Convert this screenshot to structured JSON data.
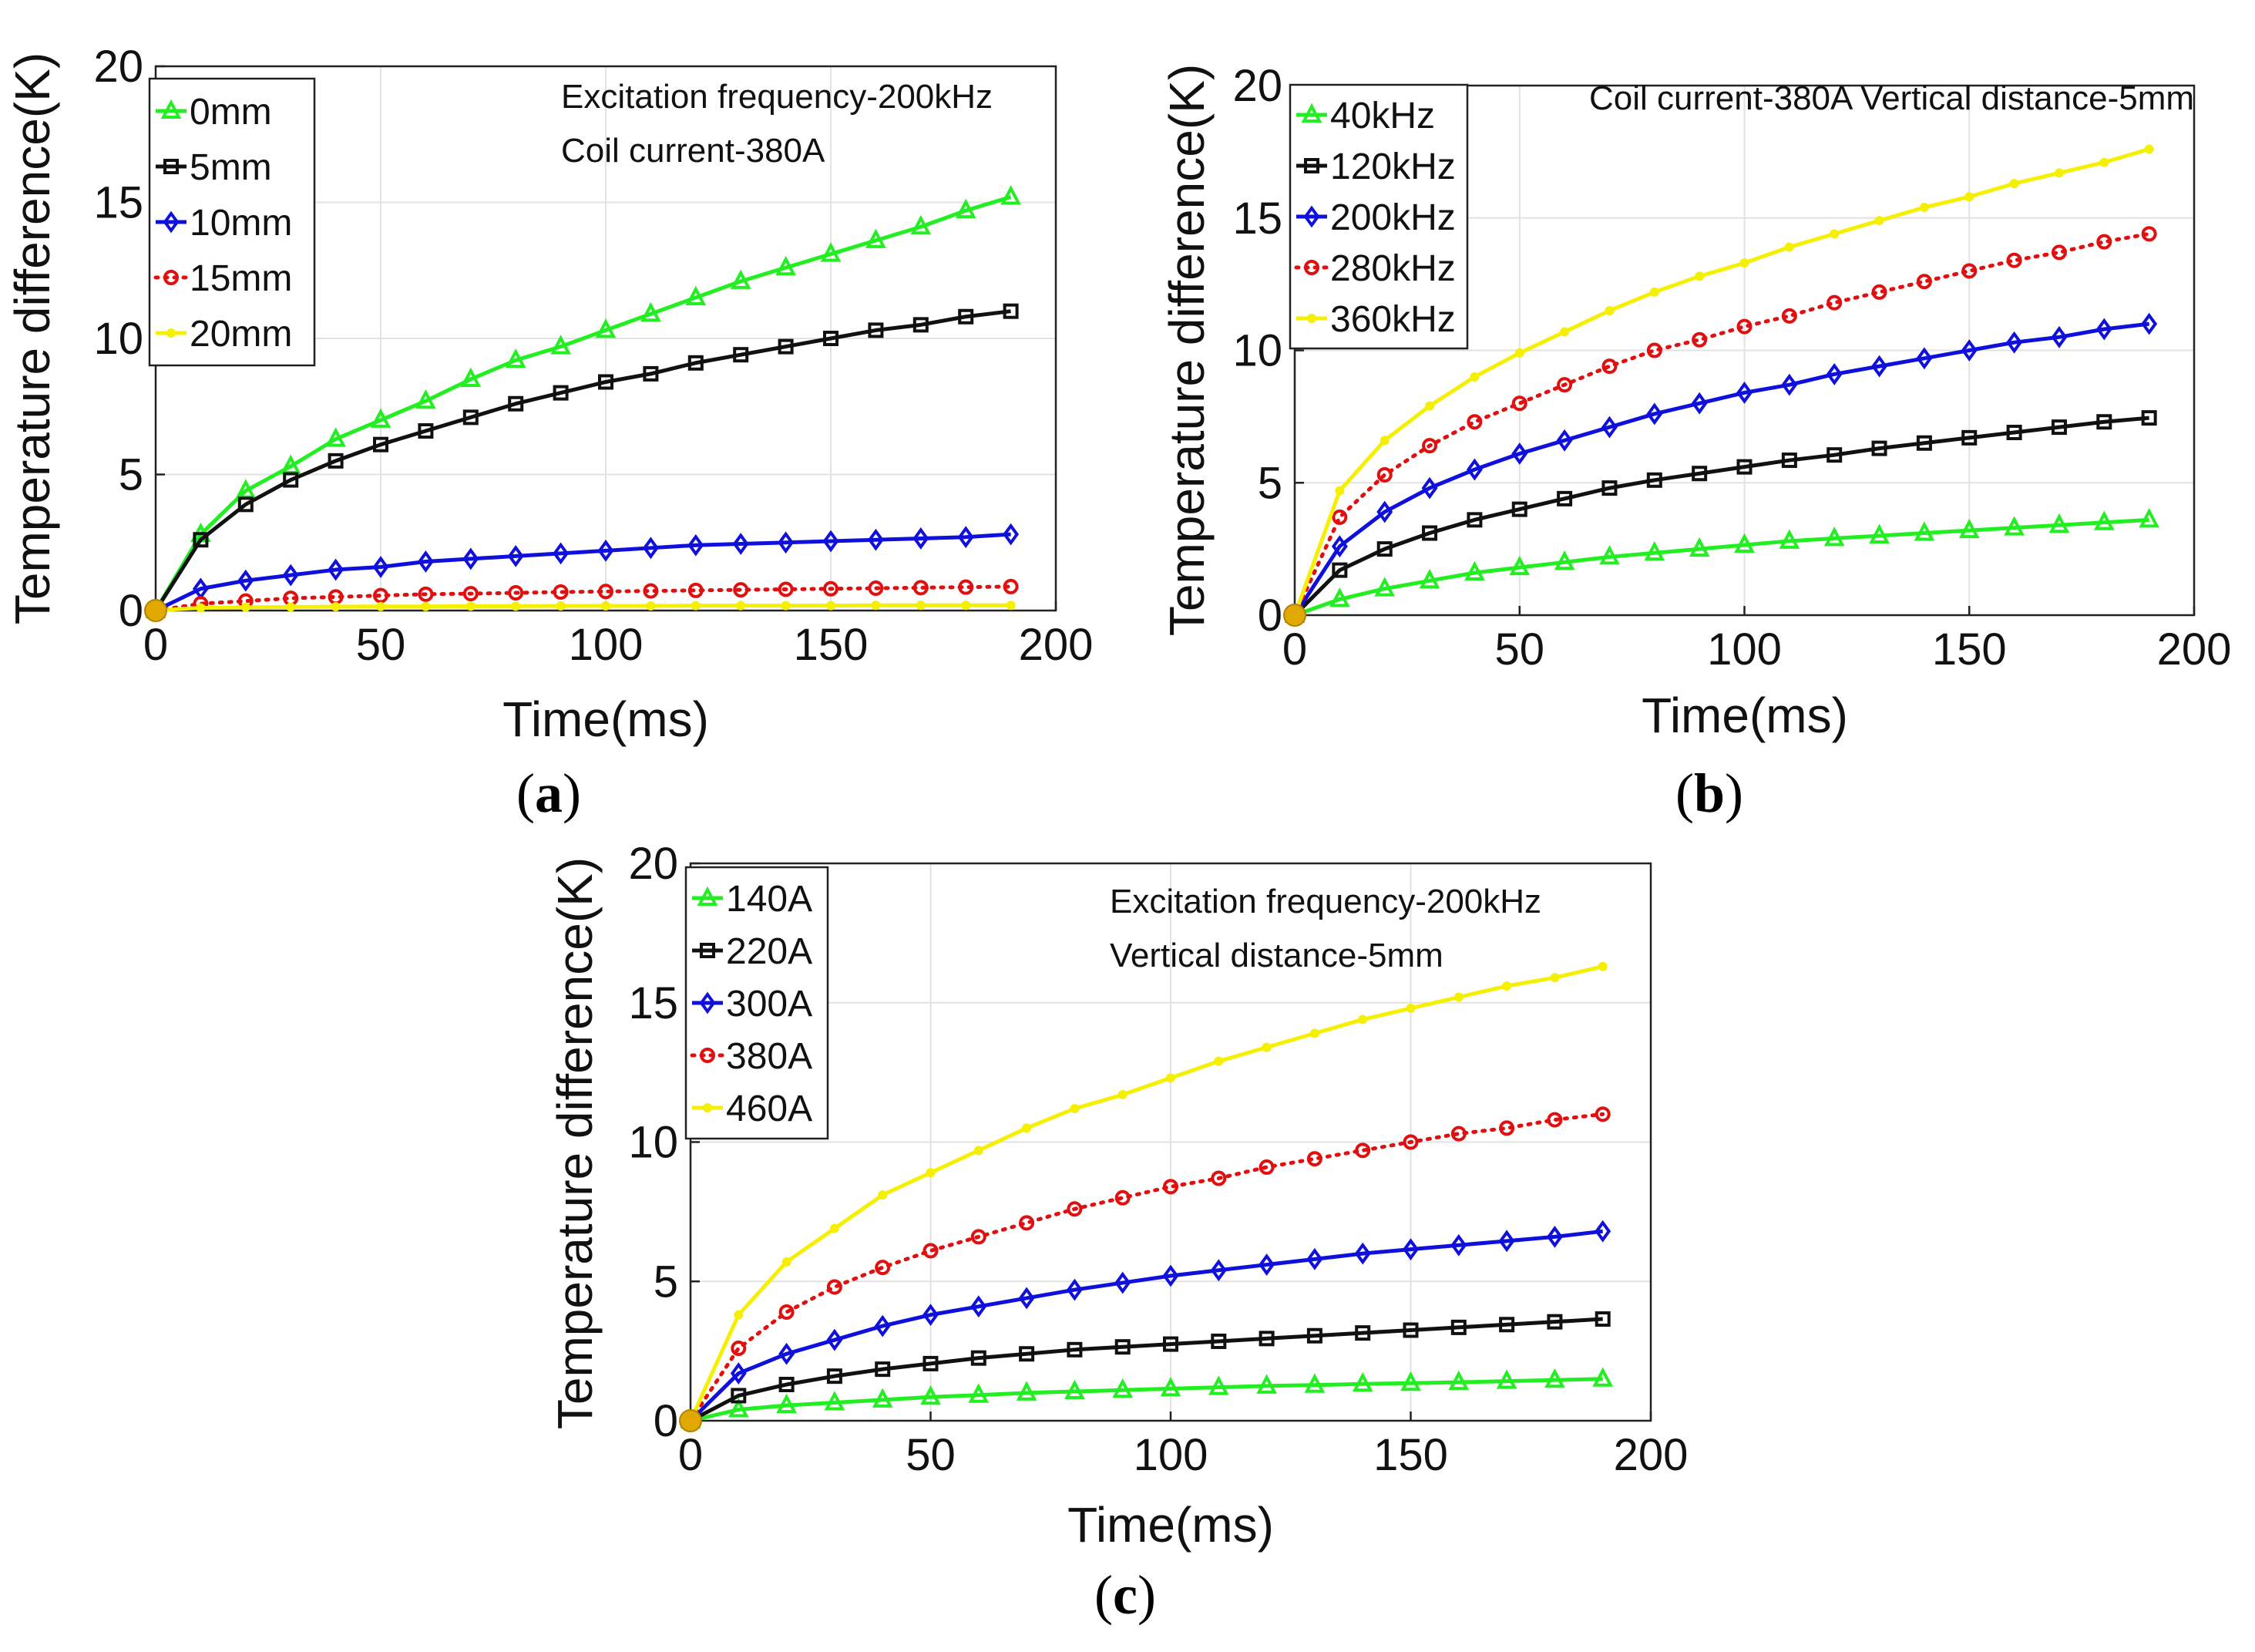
{
  "chart_data": [
    {
      "type": "line",
      "panel": "a",
      "caption": "(a)",
      "xlabel": "Time(ms)",
      "ylabel": "Temperature difference(K)",
      "xlim": [
        0,
        200
      ],
      "ylim": [
        0,
        20
      ],
      "xticks": [
        0,
        50,
        100,
        150,
        200
      ],
      "yticks": [
        0,
        5,
        10,
        15,
        20
      ],
      "grid": true,
      "legend_position": "top-left",
      "annotations": [
        "Excitation frequency-200kHz",
        "Coil current-380A"
      ],
      "x": [
        0,
        10,
        20,
        30,
        40,
        50,
        60,
        70,
        80,
        90,
        100,
        110,
        120,
        130,
        140,
        150,
        160,
        170,
        180,
        190
      ],
      "series": [
        {
          "name": "0mm",
          "color": "#22ee22",
          "marker": "triangle",
          "dash": "solid",
          "values": [
            0,
            2.8,
            4.4,
            5.3,
            6.3,
            7.0,
            7.7,
            8.5,
            9.2,
            9.7,
            10.3,
            10.9,
            11.5,
            12.1,
            12.6,
            13.1,
            13.6,
            14.1,
            14.7,
            15.2
          ]
        },
        {
          "name": "5mm",
          "color": "#111111",
          "marker": "square",
          "dash": "solid",
          "values": [
            0,
            2.6,
            3.9,
            4.8,
            5.5,
            6.1,
            6.6,
            7.1,
            7.6,
            8.0,
            8.4,
            8.7,
            9.1,
            9.4,
            9.7,
            10.0,
            10.3,
            10.5,
            10.8,
            11.0
          ]
        },
        {
          "name": "10mm",
          "color": "#1010dd",
          "marker": "diamond",
          "dash": "solid",
          "values": [
            0,
            0.8,
            1.1,
            1.3,
            1.5,
            1.6,
            1.8,
            1.9,
            2.0,
            2.1,
            2.2,
            2.3,
            2.4,
            2.45,
            2.5,
            2.55,
            2.6,
            2.65,
            2.7,
            2.8
          ]
        },
        {
          "name": "15mm",
          "color": "#e01010",
          "marker": "circle",
          "dash": "dotted",
          "values": [
            0,
            0.25,
            0.35,
            0.45,
            0.5,
            0.55,
            0.6,
            0.62,
            0.65,
            0.68,
            0.7,
            0.72,
            0.74,
            0.76,
            0.78,
            0.8,
            0.82,
            0.84,
            0.86,
            0.88
          ]
        },
        {
          "name": "20mm",
          "color": "#f5f000",
          "marker": "dot",
          "dash": "solid",
          "values": [
            0,
            0.1,
            0.12,
            0.13,
            0.14,
            0.15,
            0.15,
            0.16,
            0.16,
            0.17,
            0.17,
            0.17,
            0.18,
            0.18,
            0.18,
            0.18,
            0.19,
            0.19,
            0.19,
            0.19
          ]
        }
      ]
    },
    {
      "type": "line",
      "panel": "b",
      "caption": "(b)",
      "xlabel": "Time(ms)",
      "ylabel": "Temperature difference(K)",
      "xlim": [
        0,
        200
      ],
      "ylim": [
        0,
        20
      ],
      "xticks": [
        0,
        50,
        100,
        150,
        200
      ],
      "yticks": [
        0,
        5,
        10,
        15,
        20
      ],
      "grid": true,
      "legend_position": "top-left",
      "annotations": [
        "Coil current-380A Vertical distance-5mm"
      ],
      "x": [
        0,
        10,
        20,
        30,
        40,
        50,
        60,
        70,
        80,
        90,
        100,
        110,
        120,
        130,
        140,
        150,
        160,
        170,
        180,
        190
      ],
      "series": [
        {
          "name": "40kHz",
          "color": "#22ee22",
          "marker": "triangle",
          "dash": "solid",
          "values": [
            0,
            0.6,
            1.0,
            1.3,
            1.6,
            1.8,
            2.0,
            2.2,
            2.35,
            2.5,
            2.65,
            2.8,
            2.9,
            3.0,
            3.1,
            3.2,
            3.3,
            3.4,
            3.5,
            3.6
          ]
        },
        {
          "name": "120kHz",
          "color": "#111111",
          "marker": "square",
          "dash": "solid",
          "values": [
            0,
            1.7,
            2.5,
            3.1,
            3.6,
            4.0,
            4.4,
            4.8,
            5.1,
            5.35,
            5.6,
            5.85,
            6.05,
            6.3,
            6.5,
            6.7,
            6.9,
            7.1,
            7.3,
            7.45
          ]
        },
        {
          "name": "200kHz",
          "color": "#1010dd",
          "marker": "diamond",
          "dash": "solid",
          "values": [
            0,
            2.6,
            3.9,
            4.8,
            5.5,
            6.1,
            6.6,
            7.1,
            7.6,
            8.0,
            8.4,
            8.7,
            9.1,
            9.4,
            9.7,
            10.0,
            10.3,
            10.5,
            10.8,
            11.0
          ]
        },
        {
          "name": "280kHz",
          "color": "#e01010",
          "marker": "circle",
          "dash": "dotted",
          "values": [
            0,
            3.7,
            5.3,
            6.4,
            7.3,
            8.0,
            8.7,
            9.4,
            10.0,
            10.4,
            10.9,
            11.3,
            11.8,
            12.2,
            12.6,
            13.0,
            13.4,
            13.7,
            14.1,
            14.4
          ]
        },
        {
          "name": "360kHz",
          "color": "#f5f000",
          "marker": "dot",
          "dash": "solid",
          "values": [
            0,
            4.7,
            6.6,
            7.9,
            9.0,
            9.9,
            10.7,
            11.5,
            12.2,
            12.8,
            13.3,
            13.9,
            14.4,
            14.9,
            15.4,
            15.8,
            16.3,
            16.7,
            17.1,
            17.6
          ]
        }
      ]
    },
    {
      "type": "line",
      "panel": "c",
      "caption": "(c)",
      "xlabel": "Time(ms)",
      "ylabel": "Temperature difference(K)",
      "xlim": [
        0,
        200
      ],
      "ylim": [
        0,
        20
      ],
      "xticks": [
        0,
        50,
        100,
        150,
        200
      ],
      "yticks": [
        0,
        5,
        10,
        15,
        20
      ],
      "grid": true,
      "legend_position": "top-left",
      "annotations": [
        "Excitation frequency-200kHz",
        "Vertical distance-5mm"
      ],
      "x": [
        0,
        10,
        20,
        30,
        40,
        50,
        60,
        70,
        80,
        90,
        100,
        110,
        120,
        130,
        140,
        150,
        160,
        170,
        180,
        190
      ],
      "series": [
        {
          "name": "140A",
          "color": "#22ee22",
          "marker": "triangle",
          "dash": "solid",
          "values": [
            0,
            0.4,
            0.55,
            0.65,
            0.75,
            0.85,
            0.92,
            1.0,
            1.05,
            1.1,
            1.15,
            1.2,
            1.25,
            1.28,
            1.32,
            1.35,
            1.38,
            1.42,
            1.46,
            1.5
          ]
        },
        {
          "name": "220A",
          "color": "#111111",
          "marker": "square",
          "dash": "solid",
          "values": [
            0,
            0.9,
            1.3,
            1.6,
            1.85,
            2.05,
            2.25,
            2.4,
            2.55,
            2.65,
            2.75,
            2.85,
            2.95,
            3.05,
            3.15,
            3.25,
            3.35,
            3.45,
            3.55,
            3.65
          ]
        },
        {
          "name": "300A",
          "color": "#1010dd",
          "marker": "diamond",
          "dash": "solid",
          "values": [
            0,
            1.7,
            2.4,
            2.9,
            3.4,
            3.8,
            4.1,
            4.4,
            4.7,
            4.95,
            5.2,
            5.4,
            5.6,
            5.8,
            6.0,
            6.15,
            6.3,
            6.45,
            6.6,
            6.8
          ]
        },
        {
          "name": "380A",
          "color": "#e01010",
          "marker": "circle",
          "dash": "dotted",
          "values": [
            0,
            2.6,
            3.9,
            4.8,
            5.5,
            6.1,
            6.6,
            7.1,
            7.6,
            8.0,
            8.4,
            8.7,
            9.1,
            9.4,
            9.7,
            10.0,
            10.3,
            10.5,
            10.8,
            11.0
          ]
        },
        {
          "name": "460A",
          "color": "#f5f000",
          "marker": "dot",
          "dash": "solid",
          "values": [
            0,
            3.8,
            5.7,
            6.9,
            8.1,
            8.9,
            9.7,
            10.5,
            11.2,
            11.7,
            12.3,
            12.9,
            13.4,
            13.9,
            14.4,
            14.8,
            15.2,
            15.6,
            15.9,
            16.3
          ]
        }
      ]
    }
  ]
}
